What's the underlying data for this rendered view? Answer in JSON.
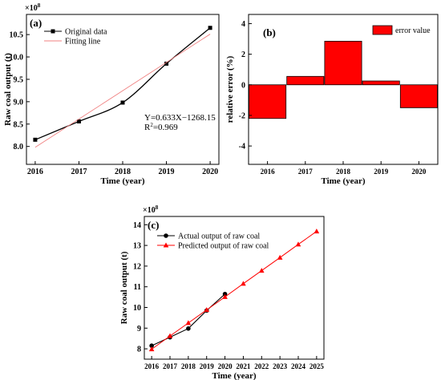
{
  "chart_data": [
    {
      "panel": "(a)",
      "type": "line",
      "scale_label": "×10",
      "scale_exp": "8",
      "xlabel": "Time (year)",
      "ylabel": "Raw coal output (t)",
      "xlim": [
        2015.8,
        2020.2
      ],
      "ylim": [
        7.6,
        10.95
      ],
      "x_ticks": [
        "2016",
        "2017",
        "2018",
        "2019",
        "2020"
      ],
      "y_ticks": [
        "8.0",
        "8.5",
        "9.0",
        "9.5",
        "10.0",
        "10.5"
      ],
      "series": [
        {
          "name": "Original data",
          "color": "#000000",
          "marker": "square",
          "x": [
            2016,
            2017,
            2018,
            2019,
            2020
          ],
          "y": [
            8.15,
            8.56,
            8.98,
            9.85,
            10.65
          ]
        },
        {
          "name": "Fitting line",
          "color": "#f08080",
          "marker": "none",
          "x": [
            2016,
            2020
          ],
          "y": [
            7.98,
            10.51
          ]
        }
      ],
      "equation": "Y=0.633X−1268.15",
      "r2_prefix": "R",
      "r2_sup": "2",
      "r2_value": "=0.969"
    },
    {
      "panel": "(b)",
      "type": "bar",
      "xlabel": "Time (year)",
      "ylabel": "relative error (%)",
      "ylim": [
        -5.2,
        4.6
      ],
      "categories": [
        "2016",
        "2017",
        "2018",
        "2019",
        "2020"
      ],
      "values": [
        -2.2,
        0.55,
        2.85,
        0.25,
        -1.5
      ],
      "y_ticks": [
        "4",
        "2",
        "0",
        "-2",
        "-4"
      ],
      "series": [
        {
          "name": "error value",
          "color": "#ff0000"
        }
      ]
    },
    {
      "panel": "(c)",
      "type": "line",
      "scale_label": "×10",
      "scale_exp": "8",
      "xlabel": "Time (year)",
      "ylabel": "Raw coal output (t)",
      "xlim": [
        2015.6,
        2025.4
      ],
      "ylim": [
        7.5,
        14.4
      ],
      "x_ticks": [
        "2016",
        "2017",
        "2018",
        "2019",
        "2020",
        "2021",
        "2022",
        "2023",
        "2024",
        "2025"
      ],
      "y_ticks": [
        "8",
        "9",
        "10",
        "11",
        "12",
        "13",
        "14"
      ],
      "series": [
        {
          "name": "Actual output of raw coal",
          "color": "#000000",
          "marker": "circle",
          "x": [
            2016,
            2017,
            2018,
            2019,
            2020
          ],
          "y": [
            8.15,
            8.56,
            8.98,
            9.85,
            10.65
          ]
        },
        {
          "name": "Predicted output of raw coal",
          "color": "#ff0000",
          "marker": "triangle",
          "x": [
            2016,
            2017,
            2018,
            2019,
            2020,
            2021,
            2022,
            2023,
            2024,
            2025
          ],
          "y": [
            7.98,
            8.62,
            9.25,
            9.88,
            10.51,
            11.15,
            11.78,
            12.41,
            13.05,
            13.68
          ]
        }
      ]
    }
  ]
}
